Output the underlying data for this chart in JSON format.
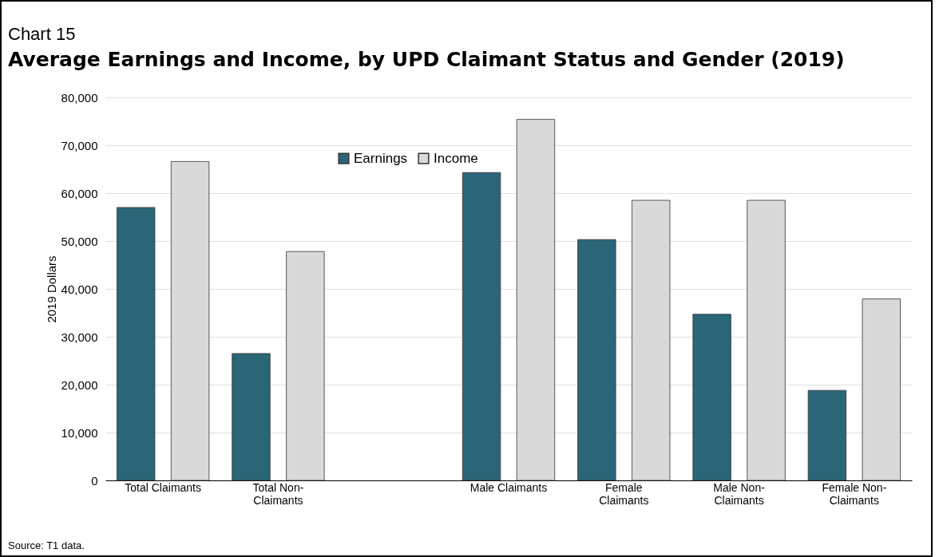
{
  "chart_data": {
    "type": "bar",
    "subtitle": "Chart 15",
    "title": "Average Earnings and Income, by UPD Claimant Status and Gender (2019)",
    "ylabel": "2019 Dollars",
    "categories": [
      "Total Claimants",
      "Total Non-Claimants",
      null,
      "Male Claimants",
      "Female Claimants",
      "Male Non-Claimants",
      "Female Non-Claimants"
    ],
    "series": [
      {
        "name": "Earnings",
        "color": "#2a6677",
        "values": [
          57000,
          26500,
          null,
          64300,
          50300,
          34700,
          18800
        ]
      },
      {
        "name": "Income",
        "color": "#d9d9d9",
        "values": [
          66600,
          47800,
          null,
          75400,
          58500,
          58500,
          37900
        ]
      }
    ],
    "ylim": [
      0,
      80000
    ],
    "yticks": [
      0,
      {
        "value": 10000,
        "label": "10,000"
      },
      {
        "value": 20000,
        "label": "20,000"
      },
      {
        "value": 30000,
        "label": "30,000"
      },
      {
        "value": 40000,
        "label": "40,000"
      },
      {
        "value": 50000,
        "label": "50,000"
      },
      {
        "value": 60000,
        "label": "60,000"
      },
      {
        "value": 70000,
        "label": "70,000"
      },
      {
        "value": 80000,
        "label": "80,000"
      }
    ],
    "grid": "y",
    "legend": "top",
    "annotations": [
      "Source: T1 data."
    ]
  }
}
